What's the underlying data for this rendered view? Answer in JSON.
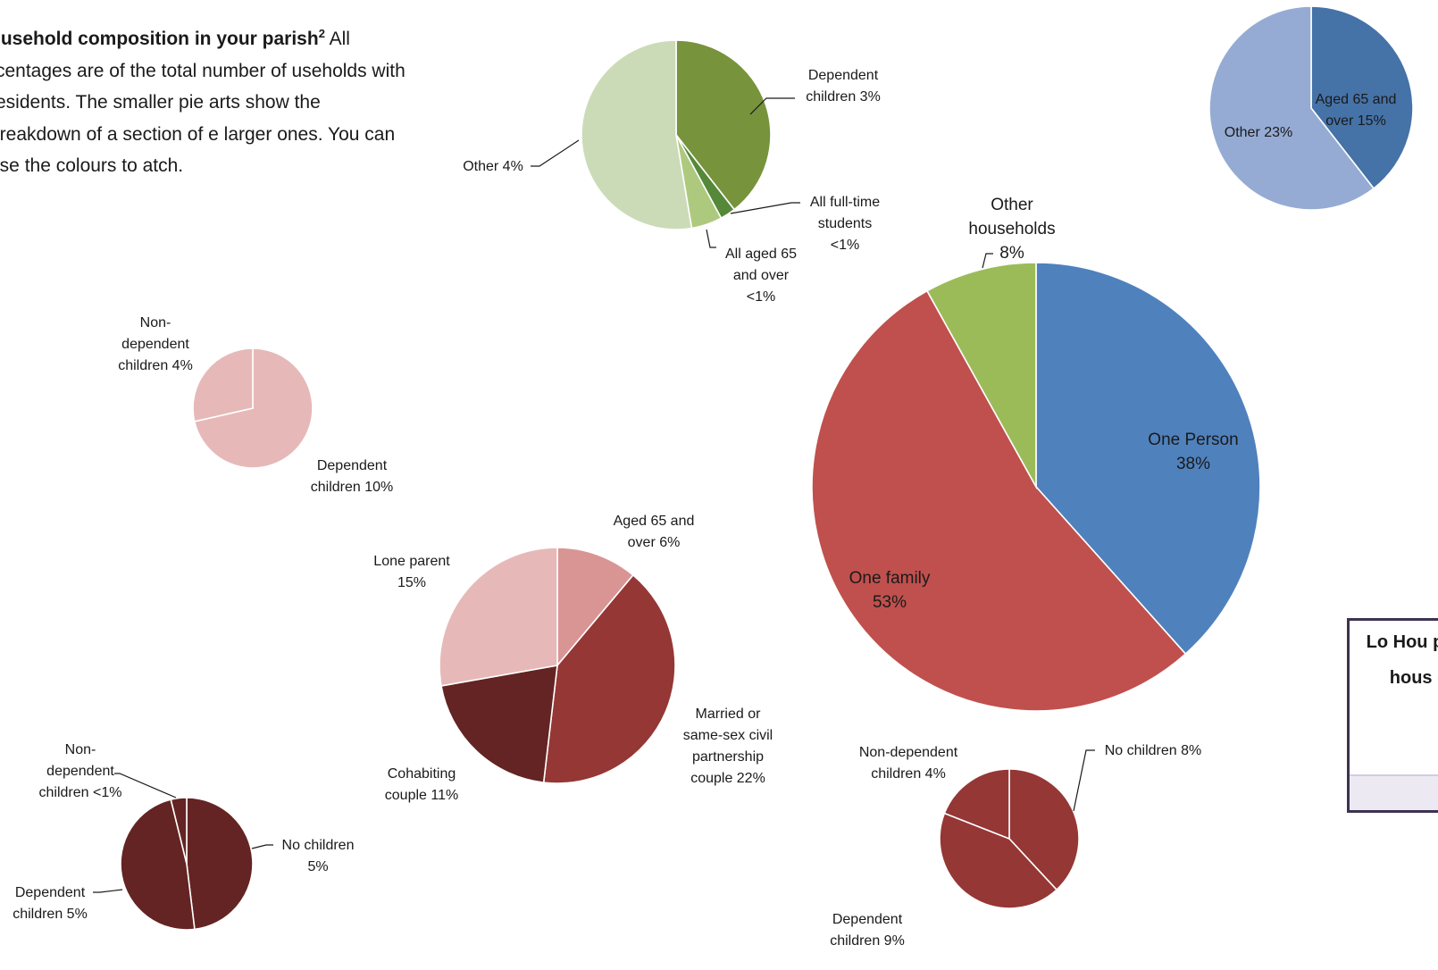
{
  "intro": {
    "title": "ousehold composition in your parish",
    "superscript": "2",
    "body": " All rcentages are of the total number of useholds with residents. The smaller pie arts show the breakdown of a section of e larger ones. You can use the colours to atch."
  },
  "info_box": {
    "text": "Lo Hou perc hous c"
  },
  "chart_data": [
    {
      "type": "pie",
      "name_id": "main",
      "slices": [
        {
          "label": "One Person 38%",
          "value": 38,
          "color": "#4f81bd"
        },
        {
          "label": "One family 53%",
          "value": 53,
          "color": "#c0504d"
        },
        {
          "label": "Other households 8%",
          "value": 8,
          "color": "#9bbb59"
        }
      ]
    },
    {
      "type": "pie",
      "name_id": "one-person",
      "slices": [
        {
          "label": "Aged 65 and over 15%",
          "value": 15,
          "color": "#4572a7"
        },
        {
          "label": "Other 23%",
          "value": 23,
          "color": "#95abd3"
        }
      ]
    },
    {
      "type": "pie",
      "name_id": "other-households",
      "slices": [
        {
          "label": "Dependent children 3%",
          "value": 3,
          "color": "#77933c"
        },
        {
          "label": "All full-time students <1%",
          "value": 0.2,
          "color": "#558838"
        },
        {
          "label": "All aged 65 and over <1%",
          "value": 0.4,
          "color": "#adc97e"
        },
        {
          "label": "Other 4%",
          "value": 4,
          "color": "#ccdbb7"
        }
      ]
    },
    {
      "type": "pie",
      "name_id": "one-family",
      "slices": [
        {
          "label": "Aged 65 and over 6%",
          "value": 6,
          "color": "#d99594"
        },
        {
          "label": "Married or same-sex civil partnership couple 22%",
          "value": 22,
          "color": "#953735"
        },
        {
          "label": "Cohabiting couple 11%",
          "value": 11,
          "color": "#632423"
        },
        {
          "label": "Lone parent 15%",
          "value": 15,
          "color": "#e6b9b8"
        }
      ]
    },
    {
      "type": "pie",
      "name_id": "lone-parent",
      "slices": [
        {
          "label": "Dependent children 10%",
          "value": 10,
          "color": "#e6b9b8"
        },
        {
          "label": "Non-dependent children 4%",
          "value": 4,
          "color": "#e6b9b8"
        }
      ]
    },
    {
      "type": "pie",
      "name_id": "cohabiting",
      "slices": [
        {
          "label": "No children 5%",
          "value": 5,
          "color": "#632423"
        },
        {
          "label": "Dependent children 5%",
          "value": 5,
          "color": "#632423"
        },
        {
          "label": "Non-dependent children <1%",
          "value": 0.4,
          "color": "#632423"
        }
      ]
    },
    {
      "type": "pie",
      "name_id": "married",
      "slices": [
        {
          "label": "No children 8%",
          "value": 8,
          "color": "#953735"
        },
        {
          "label": "Dependent children 9%",
          "value": 9,
          "color": "#953735"
        },
        {
          "label": "Non-dependent children 4%",
          "value": 4,
          "color": "#953735"
        }
      ]
    }
  ]
}
